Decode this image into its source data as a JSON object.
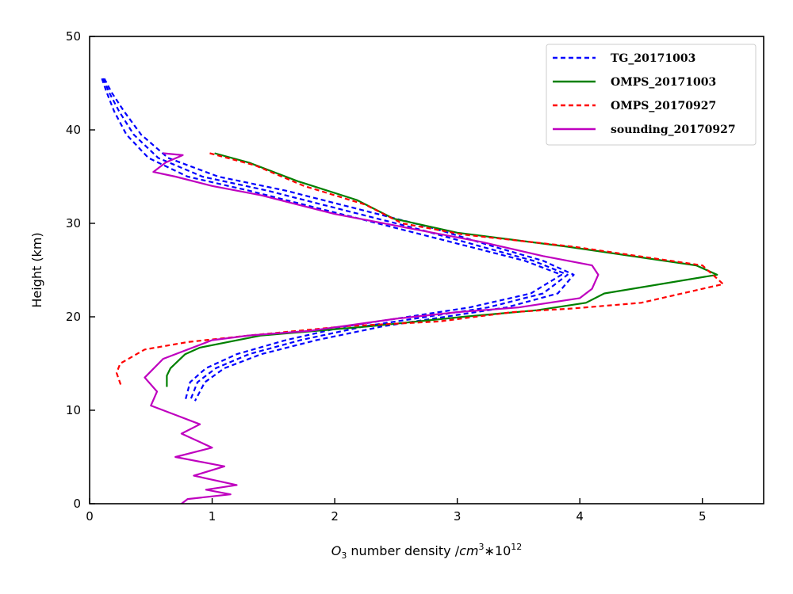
{
  "chart_data": {
    "type": "line",
    "xlabel": {
      "prefix": "O",
      "prefix_sub": "3",
      "middle": " number density /",
      "unit": "cm",
      "unit_sup": "3",
      "times": "∗10",
      "exp": "12"
    },
    "ylabel": "Height (km)",
    "xlim": [
      0,
      5.5
    ],
    "ylim": [
      0,
      50
    ],
    "xticks": [
      0,
      1,
      2,
      3,
      4,
      5
    ],
    "yticks": [
      0,
      10,
      20,
      30,
      40,
      50
    ],
    "grid": false,
    "legend_position": "top-right",
    "series": [
      {
        "name": "TG_20171003",
        "color": "#0000ff",
        "dash": "6,4",
        "in_legend": true,
        "x": [
          0.1,
          0.14,
          0.2,
          0.3,
          0.48,
          0.8,
          1.3,
          1.9,
          2.5,
          3.1,
          3.55,
          3.85,
          3.6,
          3.1,
          2.6,
          2.1,
          1.6,
          1.2,
          0.95,
          0.82,
          0.78
        ],
        "y": [
          45.5,
          44.0,
          42.0,
          39.5,
          37.0,
          35.0,
          33.5,
          31.5,
          29.5,
          27.5,
          26.0,
          24.5,
          22.5,
          21.0,
          20.0,
          19.0,
          17.5,
          16.0,
          14.5,
          13.0,
          11.0
        ]
      },
      {
        "name": "TG_20171003_b",
        "color": "#0000ff",
        "dash": "6,4",
        "in_legend": false,
        "x": [
          0.11,
          0.16,
          0.24,
          0.36,
          0.56,
          0.92,
          1.45,
          2.05,
          2.65,
          3.2,
          3.62,
          3.9,
          3.7,
          3.25,
          2.75,
          2.25,
          1.72,
          1.3,
          1.03,
          0.88,
          0.82
        ],
        "y": [
          45.5,
          44.0,
          42.0,
          39.5,
          37.0,
          35.0,
          33.5,
          31.5,
          29.5,
          27.5,
          26.0,
          24.5,
          22.5,
          21.0,
          20.0,
          19.0,
          17.5,
          16.0,
          14.5,
          13.0,
          11.0
        ]
      },
      {
        "name": "TG_20171003_c",
        "color": "#0000ff",
        "dash": "6,4",
        "in_legend": false,
        "x": [
          0.12,
          0.18,
          0.28,
          0.42,
          0.64,
          1.05,
          1.6,
          2.2,
          2.8,
          3.3,
          3.7,
          3.95,
          3.82,
          3.4,
          2.9,
          2.4,
          1.85,
          1.4,
          1.1,
          0.94,
          0.86
        ],
        "y": [
          45.5,
          44.0,
          42.0,
          39.5,
          37.0,
          35.0,
          33.5,
          31.5,
          29.5,
          27.5,
          26.0,
          24.5,
          22.5,
          21.0,
          20.0,
          19.0,
          17.5,
          16.0,
          14.5,
          13.0,
          11.0
        ]
      },
      {
        "name": "OMPS_20171003",
        "color": "#008000",
        "dash": "",
        "in_legend": true,
        "x": [
          1.02,
          1.3,
          1.7,
          2.18,
          2.48,
          3.0,
          3.9,
          4.95,
          5.12,
          4.2,
          4.05,
          3.65,
          3.05,
          2.3,
          1.4,
          0.9,
          0.78,
          0.66,
          0.63,
          0.63
        ],
        "y": [
          37.5,
          36.5,
          34.5,
          32.5,
          30.5,
          29.0,
          27.5,
          25.5,
          24.5,
          22.5,
          21.5,
          20.7,
          20.0,
          19.0,
          18.0,
          16.7,
          16.0,
          14.5,
          13.7,
          12.5
        ],
        "x_precision": "estimated"
      },
      {
        "name": "OMPS_20170927",
        "color": "#ff0000",
        "dash": "6,4",
        "in_legend": true,
        "x": [
          0.98,
          1.35,
          1.75,
          2.25,
          2.55,
          3.05,
          3.95,
          5.0,
          5.17,
          4.5,
          3.95,
          3.45,
          2.85,
          2.1,
          1.3,
          0.8,
          0.45,
          0.25,
          0.22,
          0.26
        ],
        "y": [
          37.5,
          36.2,
          34.0,
          32.0,
          30.0,
          28.8,
          27.5,
          25.5,
          23.5,
          21.5,
          20.9,
          20.5,
          19.5,
          19.0,
          18.0,
          17.3,
          16.5,
          15.0,
          14.0,
          12.5
        ]
      },
      {
        "name": "sounding_20170927",
        "color": "#bf00bf",
        "dash": "",
        "in_legend": true,
        "x": [
          0.6,
          0.76,
          0.62,
          0.52,
          0.7,
          1.0,
          1.4,
          2.0,
          2.6,
          3.2,
          3.7,
          4.1,
          4.15,
          4.1,
          4.0,
          3.5,
          3.0,
          2.5,
          1.8,
          1.3,
          1.0,
          0.6,
          0.45,
          0.55,
          0.5,
          0.7,
          0.9,
          0.75,
          1.0,
          0.7,
          1.1,
          0.85,
          1.2,
          0.95,
          1.15,
          0.8,
          0.75
        ],
        "y": [
          37.5,
          37.3,
          36.5,
          35.5,
          35.0,
          34.0,
          33.0,
          31.0,
          29.5,
          28.0,
          26.5,
          25.5,
          24.5,
          23.0,
          22.0,
          21.0,
          20.5,
          19.8,
          18.5,
          18.0,
          17.5,
          15.5,
          13.5,
          12.0,
          10.5,
          9.5,
          8.5,
          7.5,
          6.0,
          5.0,
          4.0,
          3.0,
          2.0,
          1.5,
          1.0,
          0.5,
          0.0
        ]
      }
    ]
  }
}
